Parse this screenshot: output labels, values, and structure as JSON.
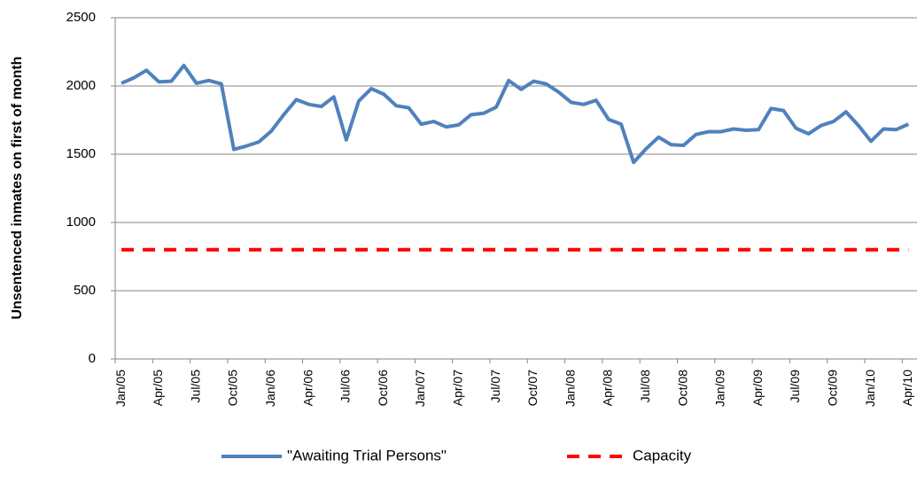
{
  "chart_data": {
    "type": "line",
    "y_label": "Unsentenced inmates on first of month",
    "categories": [
      "Jan/05",
      null,
      null,
      "Apr/05",
      null,
      null,
      "Jul/05",
      null,
      null,
      "Oct/05",
      null,
      null,
      "Jan/06",
      null,
      null,
      "Apr/06",
      null,
      null,
      "Jul/06",
      null,
      null,
      "Oct/06",
      null,
      null,
      "Jan/07",
      null,
      null,
      "Apr/07",
      null,
      null,
      "Jul/07",
      null,
      null,
      "Oct/07",
      null,
      null,
      "Jan/08",
      null,
      null,
      "Apr/08",
      null,
      null,
      "Jul/08",
      null,
      null,
      "Oct/08",
      null,
      null,
      "Jan/09",
      null,
      null,
      "Apr/09",
      null,
      null,
      "Jul/09",
      null,
      null,
      "Oct/09",
      null,
      null,
      "Jan/10",
      null,
      null,
      "Apr/10"
    ],
    "series": [
      {
        "name": "\"Awaiting Trial Persons\"",
        "color": "#4f81bd",
        "line_style": "solid",
        "values": [
          2020,
          2060,
          2115,
          2030,
          2035,
          2150,
          2020,
          2040,
          2015,
          1535,
          1560,
          1590,
          1670,
          1790,
          1900,
          1865,
          1850,
          1920,
          1605,
          1890,
          1980,
          1940,
          1855,
          1840,
          1720,
          1740,
          1700,
          1715,
          1790,
          1800,
          1845,
          2040,
          1975,
          2035,
          2015,
          1955,
          1880,
          1865,
          1895,
          1755,
          1720,
          1440,
          1540,
          1625,
          1570,
          1565,
          1645,
          1665,
          1665,
          1685,
          1675,
          1680,
          1835,
          1820,
          1690,
          1650,
          1710,
          1740,
          1810,
          1710,
          1595,
          1685,
          1680,
          1720
        ]
      },
      {
        "name": "Capacity",
        "color": "#ff0000",
        "line_style": "dashed",
        "values": [
          800,
          800,
          800,
          800,
          800,
          800,
          800,
          800,
          800,
          800,
          800,
          800,
          800,
          800,
          800,
          800,
          800,
          800,
          800,
          800,
          800,
          800,
          800,
          800,
          800,
          800,
          800,
          800,
          800,
          800,
          800,
          800,
          800,
          800,
          800,
          800,
          800,
          800,
          800,
          800,
          800,
          800,
          800,
          800,
          800,
          800,
          800,
          800,
          800,
          800,
          800,
          800,
          800,
          800,
          800,
          800,
          800,
          800,
          800,
          800,
          800,
          800,
          800,
          800
        ]
      }
    ],
    "ylim": [
      0,
      2500
    ],
    "yticks": [
      0,
      500,
      1000,
      1500,
      2000,
      2500
    ],
    "grid": true,
    "legend": "bottom"
  }
}
